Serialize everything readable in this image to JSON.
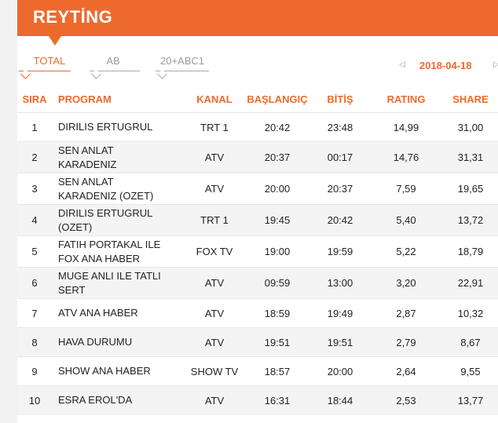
{
  "header": {
    "title": "REYTİNG",
    "accent": "#ee6a2c"
  },
  "tabs": [
    {
      "label": "TOTAL",
      "active": true
    },
    {
      "label": "AB",
      "active": false
    },
    {
      "label": "20+ABC1",
      "active": false
    }
  ],
  "date_nav": {
    "prev_icon": "◁",
    "date": "2018-04-18",
    "next_icon": "▷"
  },
  "table": {
    "headers": [
      "SIRA",
      "PROGRAM",
      "KANAL",
      "BAŞLANGIÇ",
      "BİTİŞ",
      "RATING",
      "SHARE"
    ],
    "rows": [
      [
        "1",
        "DIRILIS ERTUGRUL",
        "TRT 1",
        "20:42",
        "23:48",
        "14,99",
        "31,00"
      ],
      [
        "2",
        "SEN ANLAT\nKARADENIZ",
        "ATV",
        "20:37",
        "00:17",
        "14,76",
        "31,31"
      ],
      [
        "3",
        "SEN ANLAT\nKARADENIZ (OZET)",
        "ATV",
        "20:00",
        "20:37",
        "7,59",
        "19,65"
      ],
      [
        "4",
        "DIRILIS ERTUGRUL\n(OZET)",
        "TRT 1",
        "19:45",
        "20:42",
        "5,40",
        "13,72"
      ],
      [
        "5",
        "FATIH PORTAKAL ILE\nFOX ANA HABER",
        "FOX TV",
        "19:00",
        "19:59",
        "5,22",
        "18,79"
      ],
      [
        "6",
        "MUGE ANLI ILE TATLI\nSERT",
        "ATV",
        "09:59",
        "13:00",
        "3,20",
        "22,91"
      ],
      [
        "7",
        "ATV ANA HABER",
        "ATV",
        "18:59",
        "19:49",
        "2,87",
        "10,32"
      ],
      [
        "8",
        "HAVA DURUMU",
        "ATV",
        "19:51",
        "19:51",
        "2,79",
        "8,67"
      ],
      [
        "9",
        "SHOW ANA HABER",
        "SHOW TV",
        "18:57",
        "20:00",
        "2,64",
        "9,55"
      ],
      [
        "10",
        "ESRA EROL'DA",
        "ATV",
        "16:31",
        "18:44",
        "2,53",
        "13,77"
      ]
    ]
  }
}
